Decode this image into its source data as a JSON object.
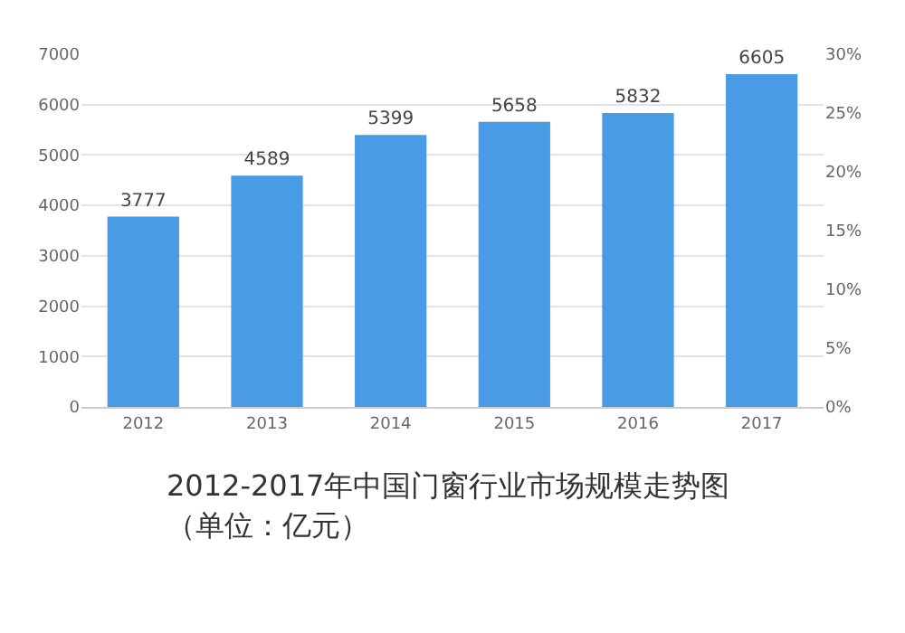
{
  "chart_data": {
    "type": "bar",
    "title": "2012-2017年中国门窗行业市场规模走势图（单位：亿元）",
    "categories": [
      "2012",
      "2013",
      "2014",
      "2015",
      "2016",
      "2017"
    ],
    "values": [
      3777,
      4589,
      5399,
      5658,
      5832,
      6605
    ],
    "color": "#4a9be6",
    "data_labels": true,
    "ylim": [
      0,
      7000
    ],
    "yticks": [
      0,
      1000,
      2000,
      3000,
      4000,
      5000,
      6000,
      7000
    ],
    "y2lim": [
      0,
      30
    ],
    "y2ticks": [
      {
        "value": 0,
        "label": "0%"
      },
      {
        "value": 5,
        "label": "5%"
      },
      {
        "value": 10,
        "label": "10%"
      },
      {
        "value": 15,
        "label": "15%"
      },
      {
        "value": 20,
        "label": "20%"
      },
      {
        "value": 25,
        "label": "25%"
      },
      {
        "value": 30,
        "label": "30%"
      }
    ],
    "grid": "y"
  }
}
